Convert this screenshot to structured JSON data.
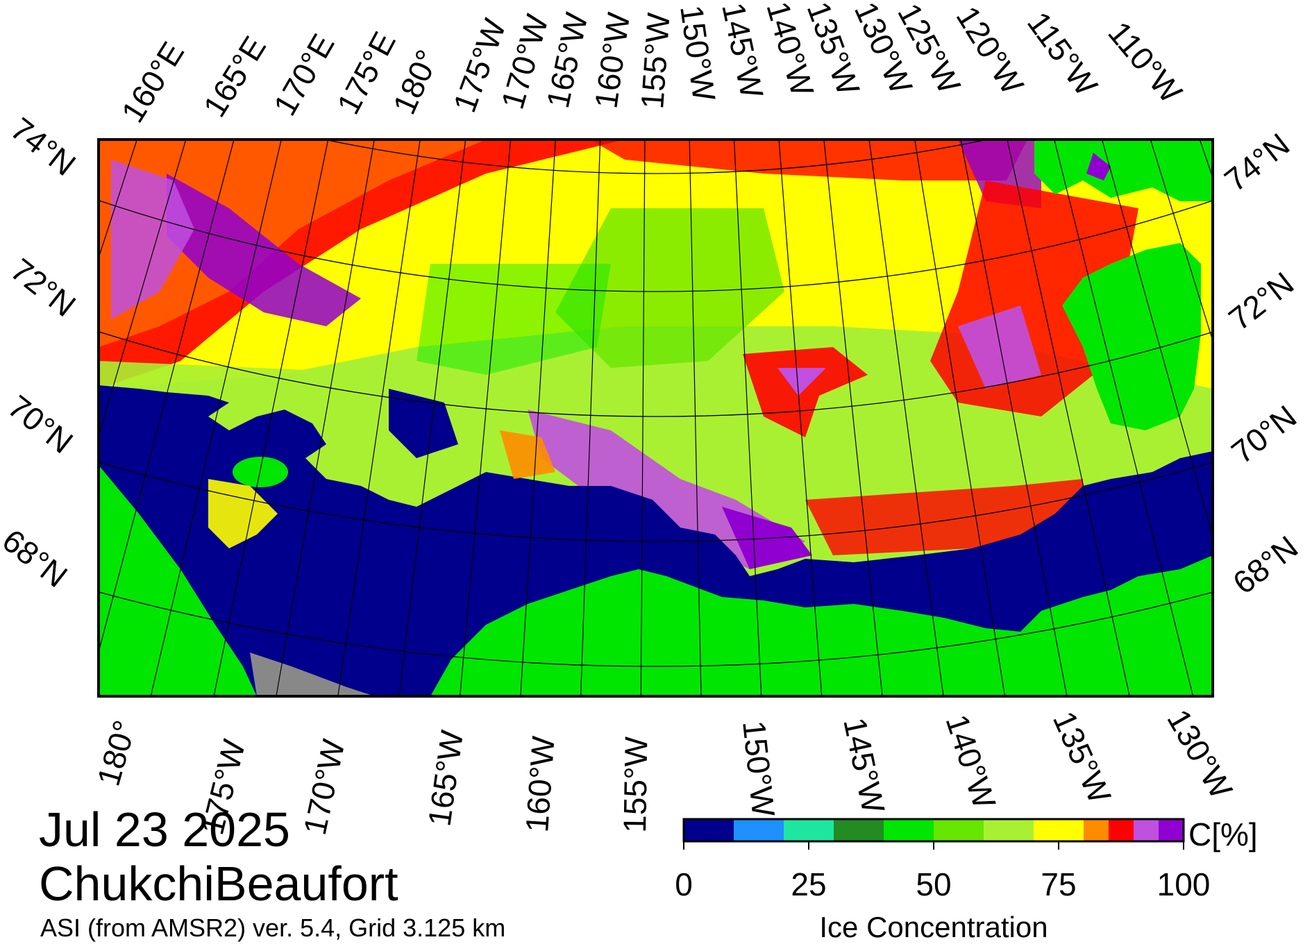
{
  "title": {
    "date": "Jul 23 2025",
    "region": "ChukchiBeaufort",
    "product": "ASI (from AMSR2) ver. 5.4,  Grid 3.125 km"
  },
  "map": {
    "top_lon_labels": [
      "160°E",
      "165°E",
      "170°E",
      "175°E",
      "180°",
      "175°W",
      "170°W",
      "165°W",
      "160°W",
      "155°W",
      "150°W",
      "145°W",
      "140°W",
      "135°W",
      "130°W",
      "125°W",
      "120°W",
      "115°W",
      "110°W"
    ],
    "bottom_lon_labels": [
      "180°",
      "175°W",
      "170°W",
      "165°W",
      "160°W",
      "155°W",
      "150°W",
      "145°W",
      "140°W",
      "135°W",
      "130°W"
    ],
    "left_lat_labels": [
      "74°N",
      "72°N",
      "70°N",
      "68°N"
    ],
    "right_lat_labels": [
      "74°N",
      "72°N",
      "70°N",
      "68°N"
    ],
    "colors": {
      "land": "#00d200",
      "open_water": "#00008c",
      "no_data": "#888888",
      "graticule": "#000000"
    }
  },
  "colorbar": {
    "unit_label": "C[%]",
    "title": "Ice Concentration",
    "tick_labels": [
      "0",
      "25",
      "50",
      "75",
      "100"
    ],
    "tick_values": [
      0,
      25,
      50,
      75,
      100
    ],
    "bins": [
      {
        "from": 0,
        "to": 10,
        "color": "#00008c"
      },
      {
        "from": 10,
        "to": 20,
        "color": "#1e90ff"
      },
      {
        "from": 20,
        "to": 30,
        "color": "#1ee6a0"
      },
      {
        "from": 30,
        "to": 40,
        "color": "#228b22"
      },
      {
        "from": 40,
        "to": 50,
        "color": "#00e600"
      },
      {
        "from": 50,
        "to": 60,
        "color": "#66e600"
      },
      {
        "from": 60,
        "to": 70,
        "color": "#aaf032"
      },
      {
        "from": 70,
        "to": 80,
        "color": "#ffff00"
      },
      {
        "from": 80,
        "to": 85,
        "color": "#ff8c00"
      },
      {
        "from": 85,
        "to": 90,
        "color": "#ff0000"
      },
      {
        "from": 90,
        "to": 95,
        "color": "#c050e0"
      },
      {
        "from": 95,
        "to": 100,
        "color": "#9000d0"
      }
    ]
  }
}
